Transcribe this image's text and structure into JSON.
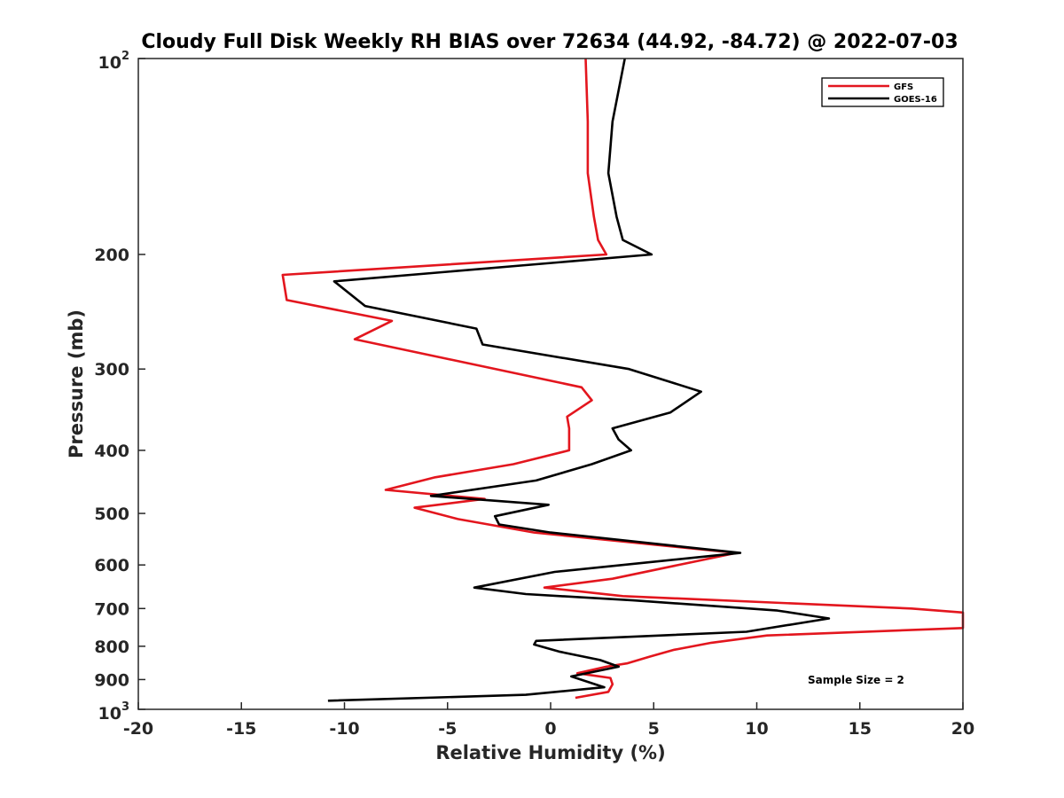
{
  "chart_data": {
    "type": "line",
    "title": "Cloudy Full Disk Weekly RH BIAS over 72634 (44.92, -84.72) @ 2022-07-03",
    "xlabel": "Relative Humidity (%)",
    "ylabel": "Pressure (mb)",
    "xlim": [
      -20,
      20
    ],
    "ylim": [
      100,
      1000
    ],
    "y_scale": "log",
    "y_reversed": true,
    "grid": false,
    "legend_position": "top-right",
    "x_ticks": [
      -20,
      -15,
      -10,
      -5,
      0,
      5,
      10,
      15,
      20
    ],
    "x_tick_labels": [
      "-20",
      "-15",
      "-10",
      "-5",
      "0",
      "5",
      "10",
      "15",
      "20"
    ],
    "y_ticks": [
      {
        "value": 100,
        "base": "10",
        "exp": "2"
      },
      {
        "value": 200,
        "label": "200"
      },
      {
        "value": 300,
        "label": "300"
      },
      {
        "value": 400,
        "label": "400"
      },
      {
        "value": 500,
        "label": "500"
      },
      {
        "value": 600,
        "label": "600"
      },
      {
        "value": 700,
        "label": "700"
      },
      {
        "value": 800,
        "label": "800"
      },
      {
        "value": 900,
        "label": "900"
      },
      {
        "value": 1000,
        "base": "10",
        "exp": "3"
      }
    ],
    "annotation": "Sample Size = 2",
    "series": [
      {
        "name": "GFS",
        "color": "#e3161e",
        "points": [
          [
            1.7,
            100
          ],
          [
            1.8,
            125
          ],
          [
            1.8,
            150
          ],
          [
            2.1,
            175
          ],
          [
            2.3,
            190
          ],
          [
            2.7,
            200
          ],
          [
            -13.0,
            215
          ],
          [
            -12.8,
            235
          ],
          [
            -7.7,
            253
          ],
          [
            -9.5,
            270
          ],
          [
            1.5,
            320
          ],
          [
            2.0,
            335
          ],
          [
            0.8,
            355
          ],
          [
            0.9,
            370
          ],
          [
            0.9,
            400
          ],
          [
            -1.8,
            420
          ],
          [
            -5.6,
            440
          ],
          [
            -8.0,
            460
          ],
          [
            -3.2,
            475
          ],
          [
            -6.6,
            490
          ],
          [
            -4.5,
            510
          ],
          [
            -0.8,
            535
          ],
          [
            9.0,
            575
          ],
          [
            3.0,
            630
          ],
          [
            -0.3,
            650
          ],
          [
            3.5,
            670
          ],
          [
            17.5,
            700
          ],
          [
            20.0,
            710
          ],
          [
            20.0,
            750
          ],
          [
            10.5,
            770
          ],
          [
            7.8,
            790
          ],
          [
            6.0,
            810
          ],
          [
            4.8,
            830
          ],
          [
            3.7,
            850
          ],
          [
            2.7,
            860
          ],
          [
            1.3,
            880
          ],
          [
            2.9,
            895
          ],
          [
            3.0,
            915
          ],
          [
            2.8,
            940
          ],
          [
            1.2,
            960
          ]
        ]
      },
      {
        "name": "GOES-16",
        "color": "#000000",
        "points": [
          [
            3.6,
            100
          ],
          [
            3.0,
            125
          ],
          [
            2.8,
            150
          ],
          [
            3.2,
            175
          ],
          [
            3.5,
            190
          ],
          [
            4.9,
            200
          ],
          [
            -10.5,
            220
          ],
          [
            -9.0,
            240
          ],
          [
            -3.6,
            260
          ],
          [
            -3.3,
            275
          ],
          [
            3.8,
            300
          ],
          [
            7.3,
            325
          ],
          [
            5.8,
            350
          ],
          [
            3.0,
            370
          ],
          [
            3.3,
            385
          ],
          [
            3.9,
            400
          ],
          [
            2.0,
            420
          ],
          [
            -0.7,
            445
          ],
          [
            -5.8,
            470
          ],
          [
            -0.1,
            485
          ],
          [
            -2.7,
            505
          ],
          [
            -2.5,
            520
          ],
          [
            0.0,
            535
          ],
          [
            9.2,
            575
          ],
          [
            0.2,
            615
          ],
          [
            -3.7,
            650
          ],
          [
            -1.2,
            665
          ],
          [
            4.0,
            680
          ],
          [
            11.0,
            705
          ],
          [
            13.5,
            725
          ],
          [
            9.5,
            760
          ],
          [
            -0.7,
            785
          ],
          [
            -0.8,
            795
          ],
          [
            0.4,
            815
          ],
          [
            2.4,
            840
          ],
          [
            3.3,
            860
          ],
          [
            1.0,
            890
          ],
          [
            2.6,
            925
          ],
          [
            -1.2,
            950
          ],
          [
            -10.8,
            970
          ]
        ]
      }
    ]
  }
}
